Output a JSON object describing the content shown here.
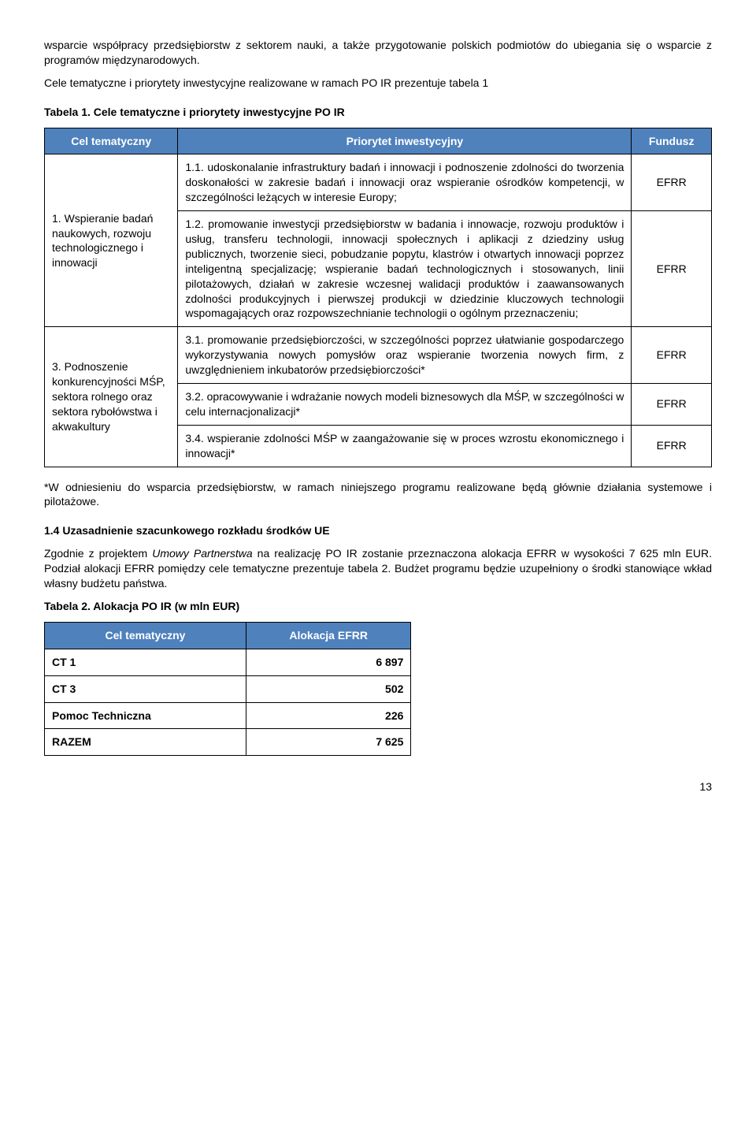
{
  "colors": {
    "header_bg": "#4f81bd",
    "header_fg": "#ffffff"
  },
  "intro": {
    "p1": "wsparcie współpracy przedsiębiorstw z sektorem nauki, a także przygotowanie polskich podmiotów do ubiegania się o wsparcie z programów międzynarodowych.",
    "p2": "Cele tematyczne i priorytety inwestycyjne realizowane w ramach PO IR prezentuje tabela 1"
  },
  "table1": {
    "caption": "Tabela 1. Cele tematyczne i priorytety inwestycyjne PO IR",
    "head": {
      "c1": "Cel tematyczny",
      "c2": "Priorytet inwestycyjny",
      "c3": "Fundusz"
    },
    "group1": {
      "label": "1. Wspieranie badań naukowych, rozwoju technologicznego i innowacji",
      "rows": [
        {
          "text": "1.1. udoskonalanie infrastruktury badań i innowacji i podnoszenie zdolności do tworzenia doskonałości w zakresie badań i innowacji oraz wspieranie ośrodków kompetencji, w szczególności leżących w interesie Europy;",
          "fund": "EFRR"
        },
        {
          "text": "1.2. promowanie inwestycji przedsiębiorstw w badania i innowacje, rozwoju produktów i usług, transferu technologii, innowacji społecznych i aplikacji z dziedziny usług publicznych, tworzenie sieci, pobudzanie popytu, klastrów  i otwartych innowacji poprzez inteligentną specjalizację; wspieranie badań technologicznych i stosowanych, linii pilotażowych, działań w zakresie wczesnej walidacji produktów i zaawansowanych zdolności produkcyjnych i pierwszej produkcji w dziedzinie kluczowych technologii wspomagających oraz rozpowszechnianie technologii o ogólnym przeznaczeniu;",
          "fund": "EFRR"
        }
      ]
    },
    "group2": {
      "label": "3. Podnoszenie konkurencyjności MŚP, sektora rolnego oraz sektora rybołówstwa i akwakultury",
      "rows": [
        {
          "text": "3.1. promowanie przedsiębiorczości, w szczególności poprzez ułatwianie gospodarczego wykorzystywania nowych pomysłów oraz wspieranie tworzenia nowych firm, z uwzględnieniem inkubatorów przedsiębiorczości*",
          "fund": "EFRR"
        },
        {
          "text": "3.2. opracowywanie i wdrażanie nowych modeli biznesowych dla MŚP, w szczególności w celu internacjonalizacji*",
          "fund": "EFRR"
        },
        {
          "text": "3.4. wspieranie zdolności MŚP w zaangażowanie się w proces wzrostu ekonomicznego i innowacji*",
          "fund": "EFRR"
        }
      ]
    }
  },
  "footnote": "*W odniesieniu do wsparcia przedsiębiorstw, w ramach niniejszego programu realizowane będą głównie działania systemowe i pilotażowe.",
  "section14": {
    "heading": "1.4 Uzasadnienie szacunkowego rozkładu środków UE",
    "p1_pre": "Zgodnie z projektem ",
    "p1_ital": "Umowy Partnerstwa",
    "p1_post": " na realizację PO IR zostanie przeznaczona alokacja EFRR w wysokości 7 625 mln EUR. Podział alokacji EFRR pomiędzy cele tematyczne prezentuje tabela 2. Budżet programu będzie uzupełniony o środki stanowiące wkład własny budżetu państwa."
  },
  "table2": {
    "caption": "Tabela 2. Alokacja PO IR (w mln EUR)",
    "head": {
      "c1": "Cel tematyczny",
      "c2": "Alokacja EFRR"
    },
    "rows": [
      {
        "label": "CT 1",
        "value": "6 897"
      },
      {
        "label": "CT 3",
        "value": "502"
      },
      {
        "label": "Pomoc Techniczna",
        "value": "226"
      },
      {
        "label": "RAZEM",
        "value": "7 625"
      }
    ]
  },
  "page_number": "13"
}
